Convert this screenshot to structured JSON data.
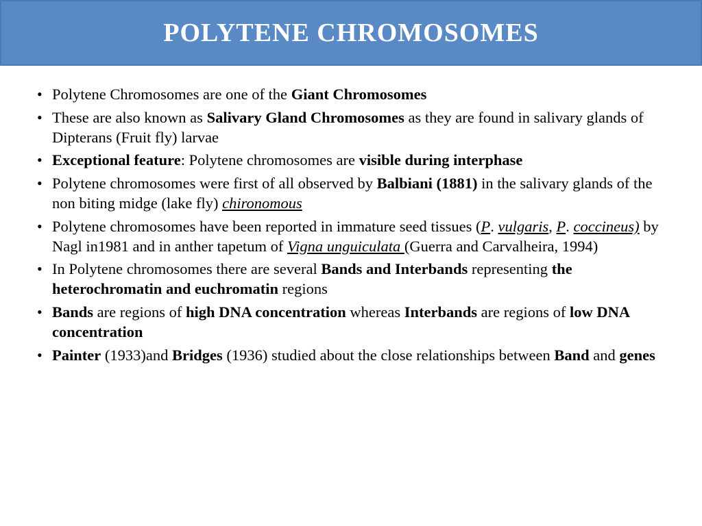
{
  "header": {
    "title": "POLYTENE CHROMOSOMES",
    "bg_color": "#5a8ac6",
    "text_color": "#ffffff",
    "title_fontsize": 38
  },
  "body": {
    "text_color": "#000000",
    "fontfamily": "Georgia, Times New Roman, serif",
    "fontsize": 22.5,
    "background_color": "#ffffff"
  },
  "bullets": [
    {
      "segments": [
        {
          "t": "Polytene Chromosomes are one of the "
        },
        {
          "t": "Giant Chromosomes",
          "b": true
        }
      ]
    },
    {
      "segments": [
        {
          "t": "These are also known as "
        },
        {
          "t": "Salivary Gland Chromosomes",
          "b": true
        },
        {
          "t": " as they are found in salivary glands of Dipterans (Fruit fly) larvae"
        }
      ]
    },
    {
      "segments": [
        {
          "t": "Exceptional feature",
          "b": true
        },
        {
          "t": ": Polytene chromosomes are "
        },
        {
          "t": "visible during interphase",
          "b": true
        }
      ]
    },
    {
      "segments": [
        {
          "t": "Polytene chromosomes were first of all observed by "
        },
        {
          "t": "Balbiani (1881)",
          "b": true
        },
        {
          "t": " in the salivary glands of the non biting midge (lake fly) "
        },
        {
          "t": "chironomous",
          "ui": true
        }
      ]
    },
    {
      "segments": [
        {
          "t": "Polytene chromosomes have been reported in immature seed tissues ("
        },
        {
          "t": "P",
          "ui": true
        },
        {
          "t": ". "
        },
        {
          "t": "vulgaris",
          "ui": true
        },
        {
          "t": ", "
        },
        {
          "t": "P",
          "ui": true
        },
        {
          "t": ". "
        },
        {
          "t": "coccineus)",
          "ui": true
        },
        {
          "t": " by Nagl in1981 and in anther tapetum of "
        },
        {
          "t": "Vigna unguiculata ",
          "ui": true
        },
        {
          "t": "(Guerra and Carvalheira, 1994)"
        }
      ]
    },
    {
      "segments": [
        {
          "t": " In Polytene chromosomes there are several "
        },
        {
          "t": "Bands and Interbands",
          "b": true
        },
        {
          "t": " representing "
        },
        {
          "t": "the heterochromatin and euchromatin",
          "b": true
        },
        {
          "t": " regions"
        }
      ]
    },
    {
      "segments": [
        {
          "t": " "
        },
        {
          "t": "Bands",
          "b": true
        },
        {
          "t": " are regions of "
        },
        {
          "t": "high DNA concentration",
          "b": true
        },
        {
          "t": " whereas "
        },
        {
          "t": "Interbands",
          "b": true
        },
        {
          "t": " are regions of "
        },
        {
          "t": "low DNA concentration",
          "b": true
        }
      ]
    },
    {
      "segments": [
        {
          "t": "Painter",
          "b": true
        },
        {
          "t": " (1933)and "
        },
        {
          "t": "Bridges",
          "b": true
        },
        {
          "t": " (1936) studied about the close relationships between "
        },
        {
          "t": "Band",
          "b": true
        },
        {
          "t": " and "
        },
        {
          "t": "genes",
          "b": true
        }
      ]
    }
  ]
}
